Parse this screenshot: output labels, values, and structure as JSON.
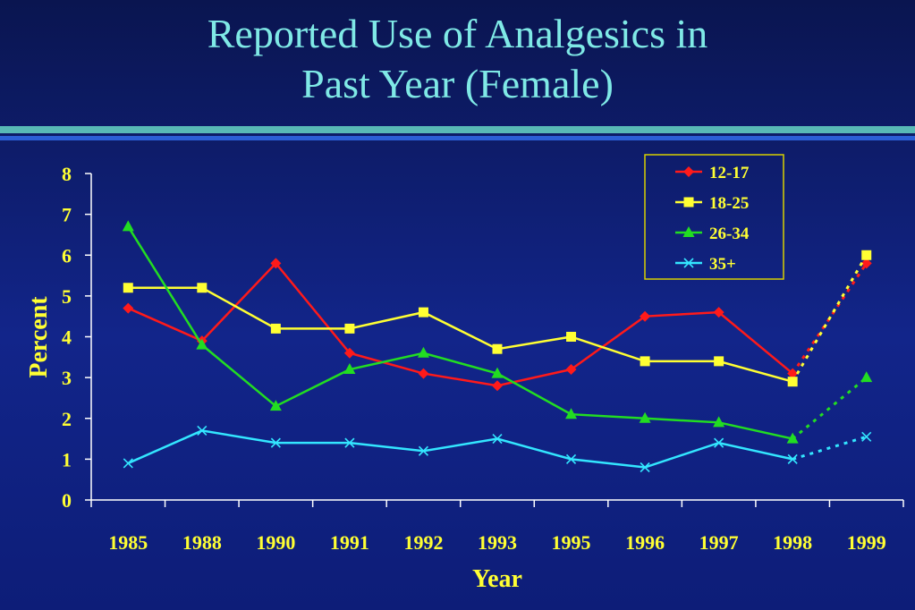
{
  "slide": {
    "title_line1": "Reported Use of Analgesics in",
    "title_line2": "Past Year (Female)"
  },
  "chart_data": {
    "type": "line",
    "xlabel": "Year",
    "ylabel": "Percent",
    "ylim": [
      0,
      8
    ],
    "yticks": [
      0,
      1,
      2,
      3,
      4,
      5,
      6,
      7,
      8
    ],
    "categories": [
      "1985",
      "1988",
      "1990",
      "1991",
      "1992",
      "1993",
      "1995",
      "1996",
      "1997",
      "1998",
      "1999"
    ],
    "grid": false,
    "legend_position": "top-right",
    "note": "",
    "series": [
      {
        "name": "12-17",
        "color": "#ff1a1a",
        "marker": "diamond",
        "values": [
          4.7,
          3.9,
          5.8,
          3.6,
          3.1,
          2.8,
          3.2,
          4.5,
          4.6,
          3.1,
          5.8
        ]
      },
      {
        "name": "18-25",
        "color": "#ffff33",
        "marker": "square",
        "values": [
          5.2,
          5.2,
          4.2,
          4.2,
          4.6,
          3.7,
          4.0,
          3.4,
          3.4,
          2.9,
          6.0
        ]
      },
      {
        "name": "26-34",
        "color": "#22dd22",
        "marker": "triangle",
        "values": [
          6.7,
          3.8,
          2.3,
          3.2,
          3.6,
          3.1,
          2.1,
          2.0,
          1.9,
          1.5,
          3.0
        ]
      },
      {
        "name": "35+",
        "color": "#33e6ff",
        "marker": "x",
        "values": [
          0.9,
          1.7,
          1.4,
          1.4,
          1.2,
          1.5,
          1.0,
          0.8,
          1.4,
          1.0,
          1.55
        ]
      }
    ]
  }
}
